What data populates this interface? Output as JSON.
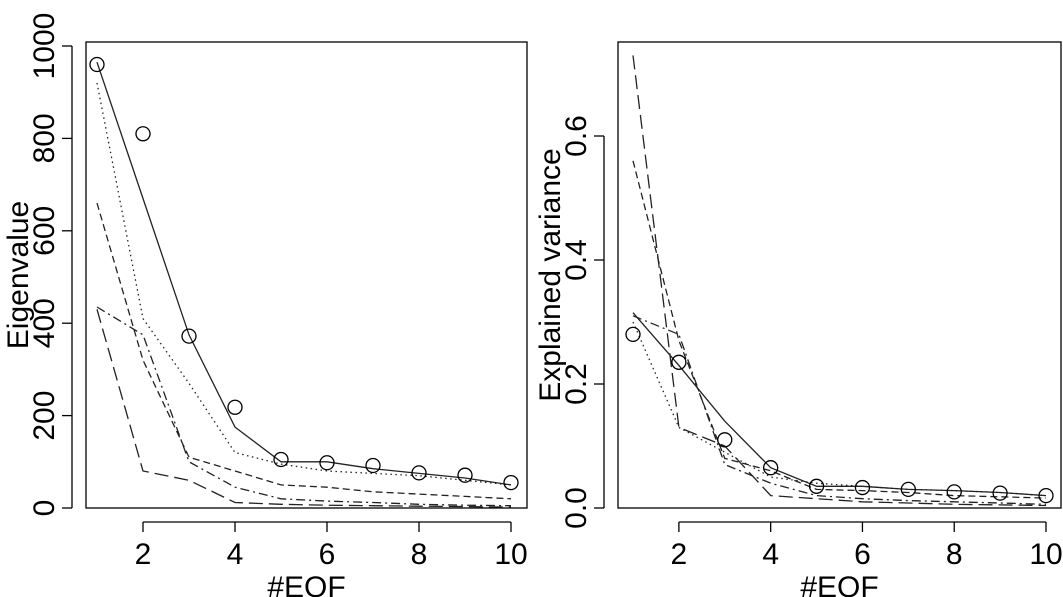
{
  "chart_data": [
    {
      "type": "line",
      "xlabel": "#EOF",
      "ylabel": "Eigenvalue",
      "xlim": [
        1,
        10
      ],
      "ylim": [
        0,
        1000
      ],
      "xticks": [
        "2",
        "4",
        "6",
        "8",
        "10"
      ],
      "yticks": [
        "0",
        "200",
        "400",
        "600",
        "800",
        "1000"
      ],
      "x": [
        1,
        2,
        3,
        4,
        5,
        6,
        7,
        8,
        9,
        10
      ],
      "points": [
        960,
        810,
        372,
        218,
        105,
        98,
        92,
        76,
        71,
        55
      ],
      "series": [
        {
          "style": "solid",
          "values": [
            965,
            670,
            375,
            175,
            100,
            100,
            85,
            75,
            65,
            50
          ]
        },
        {
          "style": "dotted",
          "values": [
            920,
            410,
            270,
            120,
            95,
            80,
            75,
            70,
            60,
            50
          ]
        },
        {
          "style": "dashed",
          "values": [
            660,
            320,
            110,
            80,
            50,
            45,
            35,
            30,
            25,
            20
          ]
        },
        {
          "style": "dashdot",
          "values": [
            435,
            375,
            100,
            45,
            20,
            15,
            12,
            8,
            6,
            5
          ]
        },
        {
          "style": "longdash",
          "values": [
            430,
            80,
            60,
            12,
            8,
            6,
            5,
            4,
            3,
            2
          ]
        }
      ]
    },
    {
      "type": "line",
      "xlabel": "#EOF",
      "ylabel": "Explained variance",
      "xlim": [
        1,
        10
      ],
      "ylim": [
        0,
        0.75
      ],
      "xticks": [
        "2",
        "4",
        "6",
        "8",
        "10"
      ],
      "yticks": [
        "0.0",
        "0.2",
        "0.4",
        "0.6"
      ],
      "x": [
        1,
        2,
        3,
        4,
        5,
        6,
        7,
        8,
        9,
        10
      ],
      "points": [
        0.28,
        0.235,
        0.11,
        0.065,
        0.035,
        0.033,
        0.03,
        0.026,
        0.024,
        0.02
      ],
      "series": [
        {
          "style": "solid",
          "values": [
            0.315,
            0.23,
            0.14,
            0.065,
            0.035,
            0.035,
            0.03,
            0.028,
            0.025,
            0.02
          ]
        },
        {
          "style": "dotted",
          "values": [
            0.3,
            0.13,
            0.09,
            0.05,
            0.04,
            0.035,
            0.03,
            0.028,
            0.025,
            0.02
          ]
        },
        {
          "style": "dashed",
          "values": [
            0.56,
            0.27,
            0.08,
            0.06,
            0.03,
            0.028,
            0.025,
            0.02,
            0.018,
            0.016
          ]
        },
        {
          "style": "dashdot",
          "values": [
            0.31,
            0.28,
            0.07,
            0.04,
            0.02,
            0.015,
            0.012,
            0.01,
            0.008,
            0.006
          ]
        },
        {
          "style": "longdash",
          "values": [
            0.73,
            0.13,
            0.1,
            0.02,
            0.015,
            0.01,
            0.008,
            0.006,
            0.005,
            0.004
          ]
        }
      ]
    }
  ]
}
